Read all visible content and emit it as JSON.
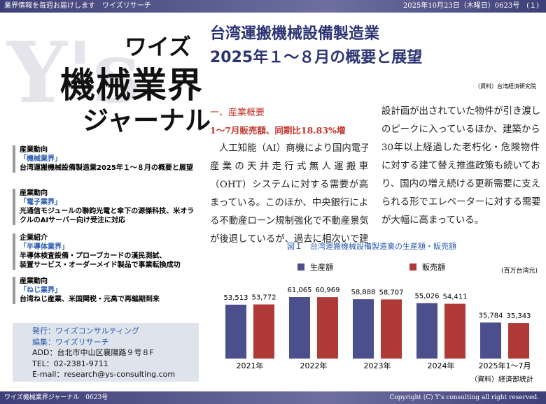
{
  "header": {
    "tagline": "業界情報を毎週お届けします　ワイズリサーチ",
    "issue": "2025年10月23日（木曜日）0623号　(１)"
  },
  "logo": {
    "watermark": "Y's",
    "line1": "ワイズ",
    "line2": "機械業界",
    "line3": "ジャーナル"
  },
  "sidebar": [
    {
      "category": "産業動向",
      "section": "「機械業界」",
      "headline": [
        "台湾運搬機械設備製造業2025年１～８月の概要と展望"
      ]
    },
    {
      "category": "産業動向",
      "section": "「電子業界」",
      "headline": [
        "光通信モジュールの聯鈞光電と傘下の源傑科技、米オラ",
        "クルのAIサーバー向け受注に対応"
      ]
    },
    {
      "category": "企業紹介",
      "section": "「半導体業界」",
      "headline": [
        "半導体検査設備・プローブカードの漢民測試、",
        "装置サービス・オーダーメイド製品で事業転換成功"
      ]
    },
    {
      "category": "産業動向",
      "section": "「ねじ業界」",
      "headline": [
        "台湾ねじ産業、米国関税・元高で再編期到来"
      ]
    }
  ],
  "publisher": {
    "lines": [
      "発行：ワイズコンサルティング",
      "編集：ワイズリサーチ",
      "ADD：台北市中山区襄陽路９号８F",
      "TEL：02-2381-9711",
      "E-mail：research@ys-consulting.com"
    ]
  },
  "article": {
    "title": [
      "台湾運搬機械設備製造業",
      "2025年１～８月の概要と展望"
    ],
    "source": "（資料）台湾経済研究院",
    "section_heading": "一、産業概要",
    "subheading": "1～7月販売額、同期比18.83%増",
    "columns": [
      [
        "人工知能（AI）商機により国内電子",
        "産業の天井走行式無人運搬車",
        "（OHT）システムに対する需要が高",
        "まっている。このほか、中央銀行によ",
        "る不動産ローン規制強化で不動産景気",
        "が後退しているが、過去に相次いで建"
      ],
      [
        "設計画が出されていた物件が引き渡し",
        "のピークに入っているほか、建築から",
        "30年以上経過した老朽化・危険物件",
        "に対する建て替え推進政策も続いてお",
        "り、国内の増え続ける更新需要に支え",
        "られる形でエレベーターに対する需要",
        "が大幅に高まっている。"
      ]
    ]
  },
  "chart": {
    "type": "bar",
    "title": "図１　台湾運搬機械設備製造業の生産額・販売額",
    "unit": "(百万台湾元)",
    "source": "（資料）経済部統計",
    "categories": [
      "2021年",
      "2022年",
      "2023年",
      "2024年",
      "2025年1～7月"
    ],
    "series": [
      {
        "name": "生産額",
        "color": "#4b4f8c",
        "values": [
          53513,
          61065,
          58888,
          55026,
          35784
        ],
        "value_labels": [
          "53,513",
          "61,065",
          "58,888",
          "55,026",
          "35,784"
        ]
      },
      {
        "name": "販売額",
        "color": "#b03a38",
        "values": [
          53772,
          60969,
          58707,
          54411,
          35343
        ],
        "value_labels": [
          "53,772",
          "60,969",
          "58,707",
          "54,411",
          "35,343"
        ]
      }
    ]
  },
  "footer": {
    "left": "ワイズ機械業界ジャーナル　0623号",
    "right": "Copyright (C) Y's consulting all right reserved."
  }
}
